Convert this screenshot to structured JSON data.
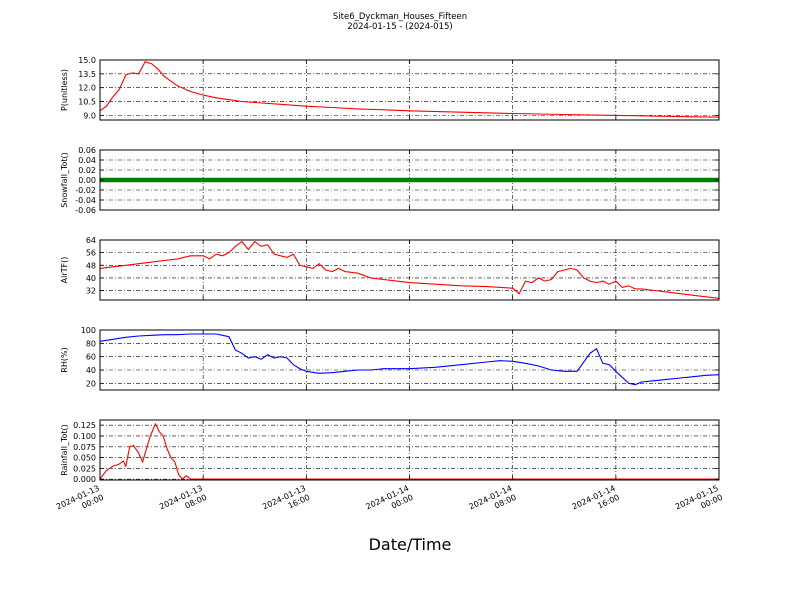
{
  "figure": {
    "title": "Site6_Dyckman_Houses_Fifteen",
    "subtitle": "2024-01-15 - (2024-015)",
    "xlabel": "Date/Time",
    "x_ticks": [
      {
        "l1": "2024-01-13",
        "l2": "00:00",
        "h": 0
      },
      {
        "l1": "2024-01-13",
        "l2": "08:00",
        "h": 8
      },
      {
        "l1": "2024-01-13",
        "l2": "16:00",
        "h": 16
      },
      {
        "l1": "2024-01-14",
        "l2": "00:00",
        "h": 24
      },
      {
        "l1": "2024-01-14",
        "l2": "08:00",
        "h": 32
      },
      {
        "l1": "2024-01-14",
        "l2": "16:00",
        "h": 40
      },
      {
        "l1": "2024-01-15",
        "l2": "00:00",
        "h": 48
      }
    ]
  },
  "chart_data": [
    {
      "type": "line",
      "ylabel": "P(unitless)",
      "ylim": [
        8.5,
        15.0
      ],
      "yticks": [
        "9.0",
        "10.5",
        "12.0",
        "13.5",
        "15.0"
      ],
      "ytick_values": [
        9.0,
        10.5,
        12.0,
        13.5,
        15.0
      ],
      "color": "#ff0000",
      "grid": true,
      "x_hours": [
        0,
        0.5,
        1,
        1.5,
        2,
        2.5,
        3,
        3.5,
        4,
        4.5,
        5,
        6,
        7,
        8,
        9,
        10,
        11,
        12,
        14,
        16,
        18,
        20,
        22,
        24,
        28,
        32,
        36,
        40,
        44,
        46,
        48
      ],
      "y": [
        9.5,
        10.0,
        11.0,
        11.8,
        13.4,
        13.6,
        13.5,
        14.8,
        14.6,
        14.0,
        13.2,
        12.2,
        11.6,
        11.2,
        10.9,
        10.7,
        10.5,
        10.4,
        10.2,
        10.0,
        9.85,
        9.7,
        9.6,
        9.5,
        9.35,
        9.2,
        9.1,
        9.0,
        8.9,
        8.85,
        8.8
      ]
    },
    {
      "type": "line",
      "ylabel": "Snowfall_Tot()",
      "ylim": [
        -0.06,
        0.06
      ],
      "yticks": [
        "-0.06",
        "-0.04",
        "-0.02",
        "0.00",
        "0.02",
        "0.04",
        "0.06"
      ],
      "ytick_values": [
        -0.06,
        -0.04,
        -0.02,
        0.0,
        0.02,
        0.04,
        0.06
      ],
      "color": "#008000",
      "grid": true,
      "x_hours": [
        0,
        48
      ],
      "y": [
        0,
        0
      ]
    },
    {
      "type": "line",
      "ylabel": "AirTF()",
      "ylim": [
        26,
        64
      ],
      "yticks": [
        "32",
        "40",
        "48",
        "56",
        "64"
      ],
      "ytick_values": [
        32,
        40,
        48,
        56,
        64
      ],
      "color": "#ff0000",
      "grid": true,
      "x_hours": [
        0,
        1,
        2,
        3,
        4,
        5,
        6,
        7,
        8,
        8.5,
        9,
        9.5,
        10,
        10.5,
        11,
        11.5,
        12,
        12.5,
        13,
        13.5,
        14,
        14.5,
        15,
        15.5,
        16,
        16.5,
        17,
        17.5,
        18,
        18.5,
        19,
        20,
        21,
        22,
        23,
        24,
        26,
        28,
        30,
        32,
        32.5,
        33,
        33.5,
        34,
        34.5,
        35,
        35.5,
        36,
        36.5,
        37,
        37.5,
        38,
        38.5,
        39,
        39.5,
        40,
        40.5,
        41,
        41.5,
        42,
        43,
        44,
        45,
        46,
        47,
        48
      ],
      "y": [
        46,
        47,
        48,
        49,
        50,
        51,
        52,
        54,
        54,
        52,
        55,
        54,
        56,
        60,
        63,
        58,
        63,
        60,
        61,
        55,
        54,
        53,
        55,
        48,
        47,
        46,
        49,
        45,
        44,
        46,
        44,
        43,
        40,
        39,
        38,
        37,
        36,
        35,
        34.5,
        33.5,
        30,
        38,
        37,
        40,
        38,
        39,
        44,
        45,
        46,
        45,
        40,
        38,
        37,
        38,
        36,
        38,
        34,
        35,
        33,
        33,
        32,
        31,
        30,
        29,
        28,
        27
      ]
    },
    {
      "type": "line",
      "ylabel": "RH(%)",
      "ylim": [
        10,
        100
      ],
      "yticks": [
        "20",
        "40",
        "60",
        "80",
        "100"
      ],
      "ytick_values": [
        20,
        40,
        60,
        80,
        100
      ],
      "color": "#0000ff",
      "grid": true,
      "x_hours": [
        0,
        1,
        2,
        3,
        4,
        5,
        6,
        7,
        8,
        9,
        9.5,
        10,
        10.5,
        11,
        11.5,
        12,
        12.5,
        13,
        13.5,
        14,
        14.5,
        15,
        15.5,
        16,
        17,
        18,
        19,
        20,
        21,
        22,
        23,
        24,
        26,
        28,
        30,
        31,
        32,
        33,
        34,
        35,
        36,
        37,
        38,
        38.5,
        39,
        39.5,
        40,
        41,
        41.5,
        42,
        43,
        44,
        45,
        46,
        47,
        48
      ],
      "y": [
        83,
        86,
        89,
        91,
        92,
        93,
        93,
        94,
        94,
        94,
        92,
        90,
        70,
        65,
        58,
        60,
        56,
        63,
        58,
        60,
        58,
        48,
        42,
        38,
        35,
        36,
        38,
        40,
        40,
        42,
        42,
        42,
        44,
        48,
        52,
        54,
        53,
        50,
        46,
        40,
        38,
        38,
        65,
        72,
        50,
        48,
        38,
        20,
        18,
        22,
        24,
        26,
        28,
        30,
        32,
        33
      ]
    },
    {
      "type": "line",
      "ylabel": "Rainfall_Tot()",
      "ylim": [
        -0.002,
        0.137
      ],
      "yticks": [
        "0.000",
        "0.025",
        "0.050",
        "0.075",
        "0.100",
        "0.125"
      ],
      "ytick_values": [
        0.0,
        0.025,
        0.05,
        0.075,
        0.1,
        0.125
      ],
      "color": "#ff0000",
      "grid": true,
      "x_hours": [
        0,
        0.5,
        1,
        1.5,
        1.8,
        2,
        2.3,
        2.6,
        3,
        3.3,
        3.6,
        3.9,
        4.3,
        4.6,
        4.9,
        5.2,
        5.5,
        5.8,
        6.1,
        6.4,
        6.7,
        7,
        48
      ],
      "y": [
        0.0,
        0.02,
        0.03,
        0.035,
        0.042,
        0.03,
        0.075,
        0.078,
        0.06,
        0.04,
        0.07,
        0.1,
        0.128,
        0.11,
        0.1,
        0.07,
        0.05,
        0.04,
        0.01,
        0.0,
        0.008,
        0.0,
        0.0
      ]
    }
  ]
}
